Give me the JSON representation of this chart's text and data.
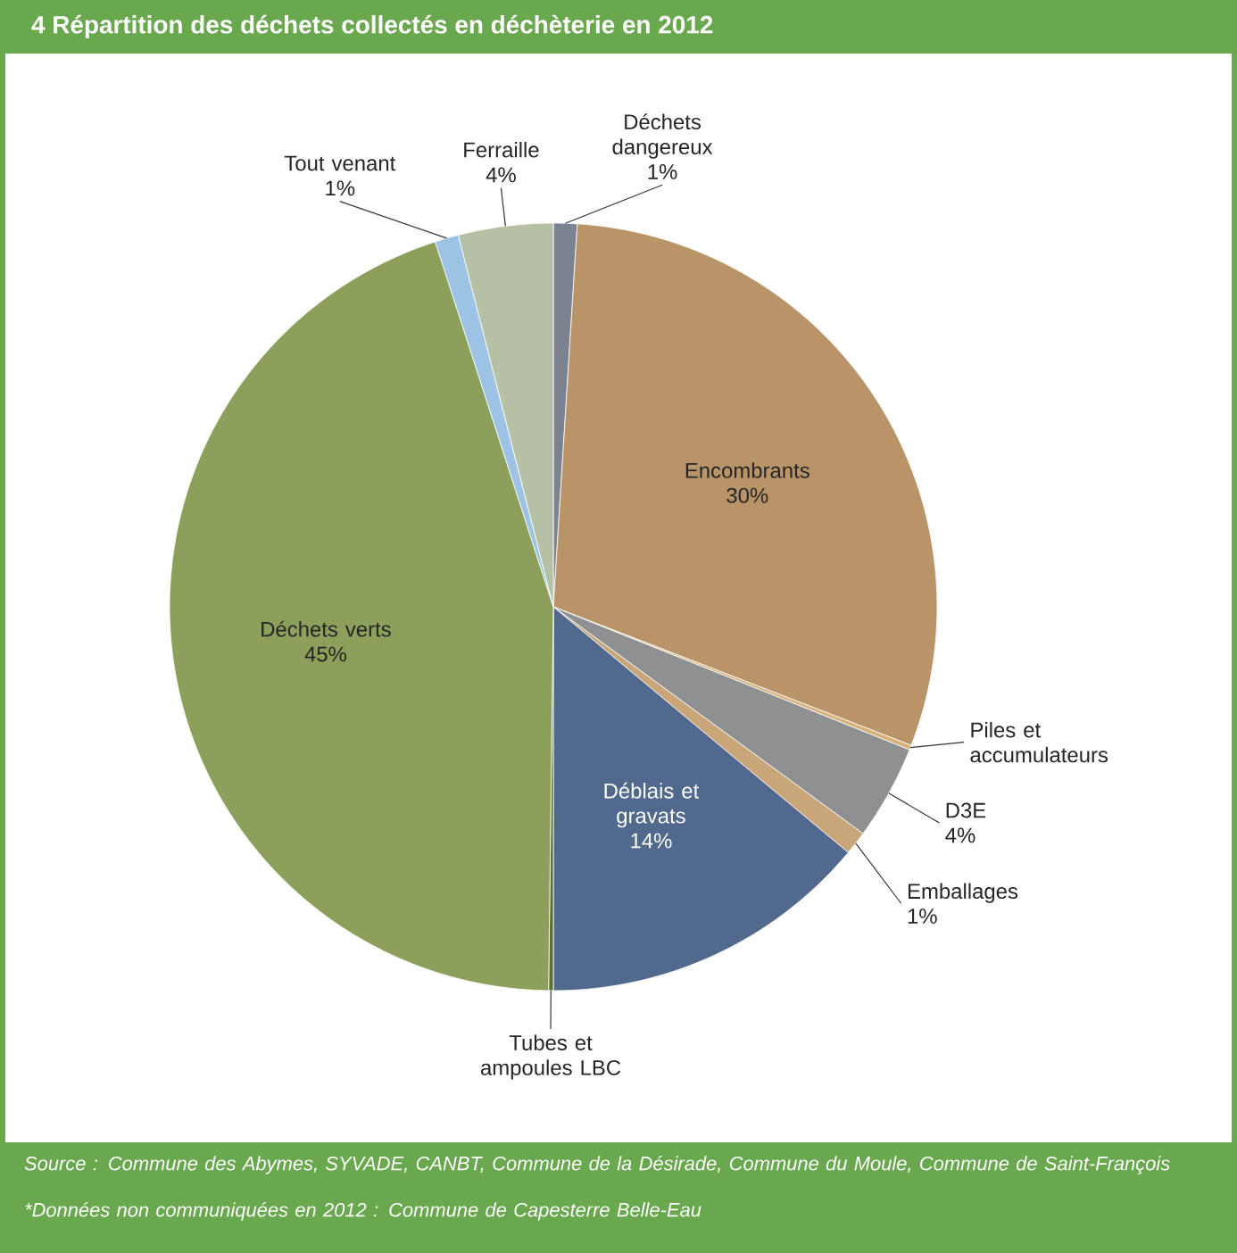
{
  "chart_data": {
    "type": "pie",
    "title": "4 Répartition des déchets collectés en déchèterie en 2012",
    "categories": [
      "Déchets dangereux",
      "Encombrants",
      "Piles et accumulateurs",
      "D3E",
      "Emballages",
      "Déblais et gravats",
      "Tubes et ampoules LBC",
      "Déchets verts",
      "Tout venant",
      "Ferraille"
    ],
    "values": [
      1,
      30,
      0.2,
      4,
      1,
      14,
      0.2,
      45,
      1,
      4
    ],
    "value_labels": [
      "1%",
      "30%",
      null,
      "4%",
      "1%",
      "14%",
      null,
      "45%",
      "1%",
      "4%"
    ],
    "colors": [
      "#7b8290",
      "#b89468",
      "#d7b07a",
      "#8e9091",
      "#c9a57a",
      "#50698c",
      "#5f6f35",
      "#8da05b",
      "#9cc3e4",
      "#b6c0a5"
    ],
    "annotations": [
      "Source : Commune des Abymes, SYVADE, CANBT, Commune de la Désirade, Commune du Moule, Commune de Saint-François",
      "*Données non communiquées en 2012 : Commune de Capesterre Belle-Eau"
    ]
  }
}
